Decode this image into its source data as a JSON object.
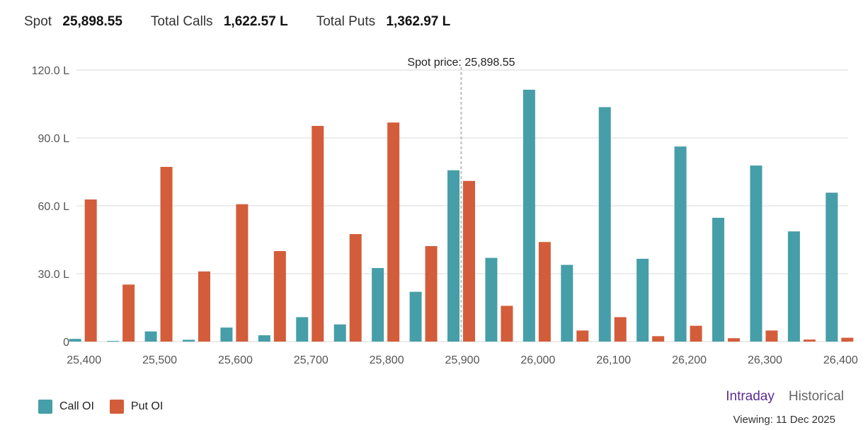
{
  "summary": {
    "spot_label": "Spot",
    "spot_value": "25,898.55",
    "calls_label": "Total Calls",
    "calls_value": "1,622.57 L",
    "puts_label": "Total Puts",
    "puts_value": "1,362.97 L"
  },
  "colors": {
    "call": "#469ea8",
    "put": "#d35d3a",
    "accent": "#5b2d91",
    "grid": "#d9d9d9",
    "marker": "#bdbdbd"
  },
  "chart_data": {
    "type": "bar",
    "categories": [
      25400,
      25450,
      25500,
      25550,
      25600,
      25650,
      25700,
      25750,
      25800,
      25850,
      25900,
      25950,
      26000,
      26050,
      26100,
      26150,
      26200,
      26250,
      26300,
      26350,
      26400
    ],
    "x_tick_labels": [
      "25,400",
      "25,500",
      "25,600",
      "25,700",
      "25,800",
      "25,900",
      "26,000",
      "26,100",
      "26,200",
      "26,300",
      "26,400"
    ],
    "x_ticks": [
      25400,
      25500,
      25600,
      25700,
      25800,
      25900,
      26000,
      26100,
      26200,
      26300,
      26400
    ],
    "xlim": [
      25390,
      26410
    ],
    "series": [
      {
        "name": "Call OI",
        "values": [
          1.2,
          0.3,
          4.5,
          0.8,
          6.2,
          2.8,
          10.8,
          7.6,
          32.5,
          22.0,
          75.7,
          37.0,
          111.3,
          33.9,
          103.6,
          36.6,
          86.2,
          54.7,
          77.8,
          48.7,
          65.8
        ]
      },
      {
        "name": "Put OI",
        "values": [
          62.8,
          25.2,
          77.2,
          31.0,
          60.7,
          40.0,
          95.3,
          47.5,
          96.8,
          42.2,
          71.0,
          15.8,
          44.0,
          4.9,
          10.8,
          2.4,
          7.0,
          1.5,
          4.9,
          0.9,
          1.7
        ]
      }
    ],
    "ylim": [
      0,
      120
    ],
    "y_ticks": [
      0,
      30,
      60,
      90,
      120
    ],
    "y_tick_labels": [
      "0",
      "30.0 L",
      "60.0 L",
      "90.0 L",
      "120.0 L"
    ],
    "spot_marker": {
      "value": 25898.55,
      "label": "Spot price: 25,898.55"
    },
    "legend_position": "bottom-left",
    "grid": true
  },
  "view_toggle": {
    "intraday": "Intraday",
    "historical": "Historical"
  },
  "viewing_text": "Viewing: 11 Dec 2025"
}
